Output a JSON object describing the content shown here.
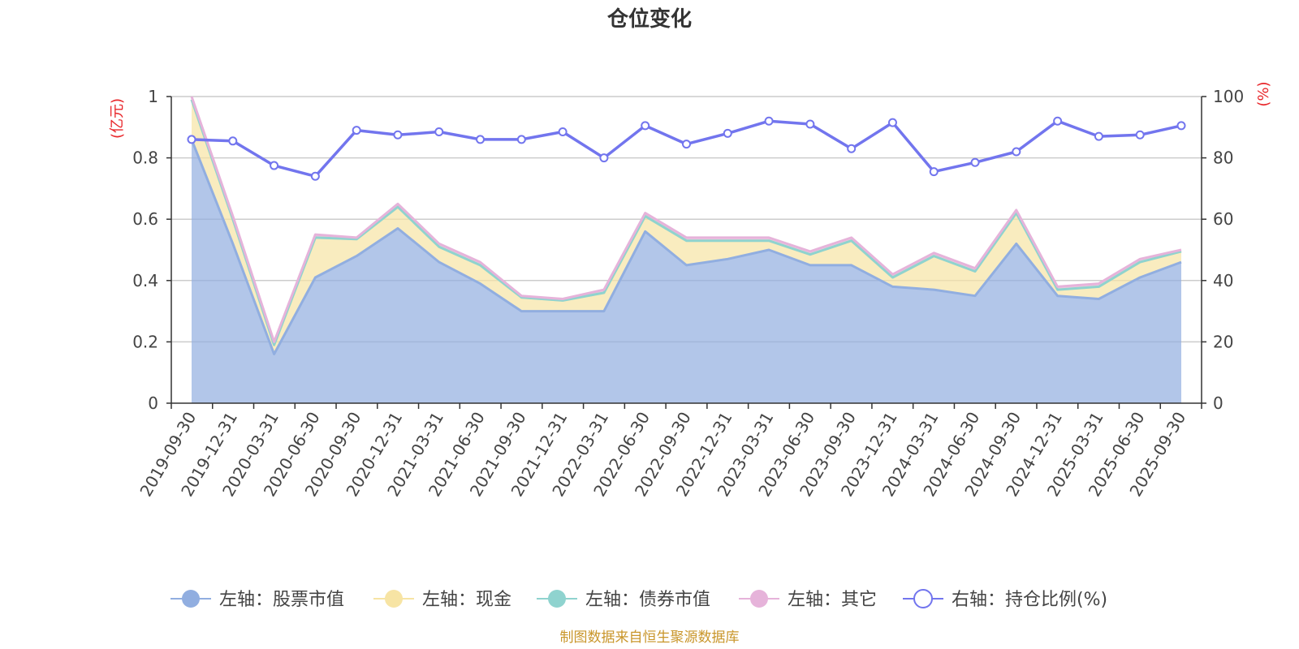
{
  "chart_data": {
    "type": "area+line",
    "title": "仓位变化",
    "y_left_unit": "(亿元)",
    "y_right_unit": "(%)",
    "y_left_range": [
      0,
      1
    ],
    "y_right_range": [
      0,
      100
    ],
    "y_left_ticks": [
      "0",
      "0.2",
      "0.4",
      "0.6",
      "0.8",
      "1"
    ],
    "y_right_ticks": [
      "0",
      "20",
      "40",
      "60",
      "80",
      "100"
    ],
    "categories": [
      "2019-09-30",
      "2019-12-31",
      "2020-03-31",
      "2020-06-30",
      "2020-09-30",
      "2020-12-31",
      "2021-03-31",
      "2021-06-30",
      "2021-09-30",
      "2021-12-31",
      "2022-03-31",
      "2022-06-30",
      "2022-09-30",
      "2022-12-31",
      "2023-03-31",
      "2023-06-30",
      "2023-09-30",
      "2023-12-31",
      "2024-03-31",
      "2024-06-30",
      "2024-09-30",
      "2024-12-31",
      "2025-03-31",
      "2025-06-30",
      "2025-09-30"
    ],
    "series": [
      {
        "name": "左轴：股票市值",
        "axis": "left",
        "stack": true,
        "color": "#91aee0",
        "values": [
          0.86,
          0.52,
          0.16,
          0.41,
          0.48,
          0.57,
          0.46,
          0.39,
          0.3,
          0.3,
          0.3,
          0.56,
          0.45,
          0.47,
          0.5,
          0.45,
          0.45,
          0.38,
          0.37,
          0.35,
          0.52,
          0.35,
          0.34,
          0.41,
          0.46
        ]
      },
      {
        "name": "左轴：现金",
        "axis": "left",
        "stack": true,
        "color": "#f7e4a4",
        "values": [
          0.13,
          0.08,
          0.03,
          0.13,
          0.055,
          0.07,
          0.05,
          0.06,
          0.045,
          0.035,
          0.06,
          0.05,
          0.08,
          0.06,
          0.03,
          0.035,
          0.08,
          0.03,
          0.11,
          0.08,
          0.1,
          0.02,
          0.04,
          0.05,
          0.035
        ]
      },
      {
        "name": "左轴：债券市值",
        "axis": "left",
        "stack": true,
        "color": "#8fd3cf",
        "values": [
          0,
          0,
          0,
          0,
          0,
          0,
          0,
          0,
          0,
          0,
          0,
          0,
          0,
          0,
          0,
          0,
          0,
          0,
          0,
          0,
          0,
          0,
          0,
          0,
          0
        ]
      },
      {
        "name": "左轴：其它",
        "axis": "left",
        "stack": true,
        "color": "#e6b3da",
        "values": [
          0.01,
          0.01,
          0.01,
          0.01,
          0.005,
          0.01,
          0.01,
          0.01,
          0.005,
          0.005,
          0.01,
          0.01,
          0.01,
          0.01,
          0.01,
          0.01,
          0.01,
          0.01,
          0.01,
          0.01,
          0.01,
          0.01,
          0.01,
          0.01,
          0.005
        ]
      },
      {
        "name": "右轴：持仓比例(%)",
        "axis": "right",
        "stack": false,
        "color": "#7275ee",
        "values": [
          86,
          85.5,
          77.5,
          74,
          89,
          87.5,
          88.5,
          86,
          86,
          88.5,
          80,
          90.5,
          84.5,
          88,
          92,
          91,
          83,
          91.5,
          75.5,
          78.5,
          82,
          92,
          87,
          87.5,
          90.5
        ]
      }
    ]
  },
  "footer": {
    "source": "制图数据来自恒生聚源数据库"
  }
}
